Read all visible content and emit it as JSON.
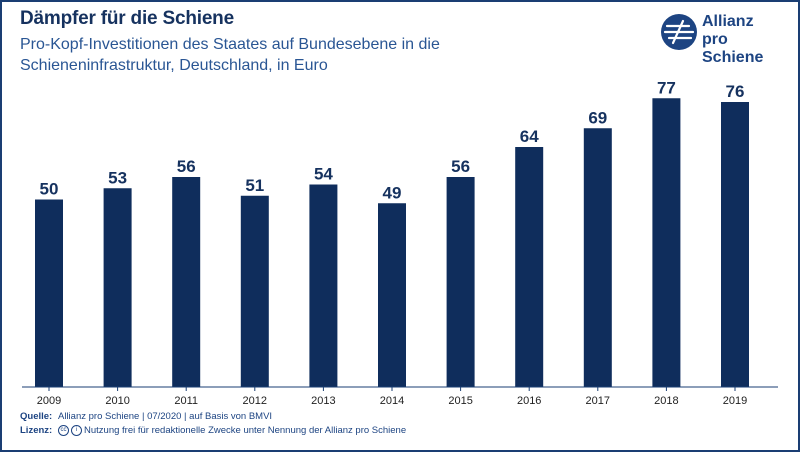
{
  "title": "Dämpfer für die Schiene",
  "subtitle": "Pro-Kopf-Investitionen des Staates auf Bundesebene in die Schieneninfrastruktur, Deutschland, in Euro",
  "logo": {
    "line1": "Allianz",
    "line2": "pro Schiene"
  },
  "footer": {
    "source_label": "Quelle:",
    "source_text": "Allianz pro Schiene | 07/2020 | auf Basis von BMVI",
    "license_label": "Lizenz:",
    "license_icon_1": "cc",
    "license_icon_2": "i",
    "license_text": "Nutzung frei für redaktionelle Zwecke unter Nennung der Allianz pro Schiene"
  },
  "colors": {
    "bar": "#0f2d5c",
    "text": "#16325f",
    "accent": "#1d4482"
  },
  "chart_data": {
    "type": "bar",
    "categories": [
      "2009",
      "2010",
      "2011",
      "2012",
      "2013",
      "2014",
      "2015",
      "2016",
      "2017",
      "2018",
      "2019"
    ],
    "values": [
      50,
      53,
      56,
      51,
      54,
      49,
      56,
      64,
      69,
      77,
      76
    ],
    "ylim": [
      0,
      80
    ],
    "xlabel": "",
    "ylabel": "",
    "grid": false,
    "data_labels": true
  }
}
